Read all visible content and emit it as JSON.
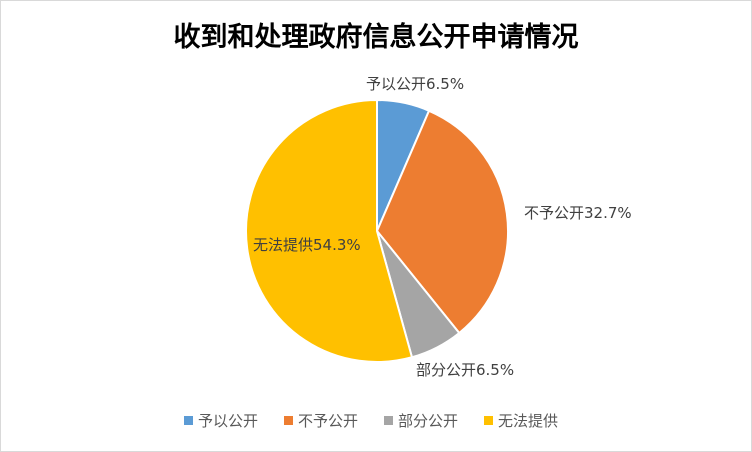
{
  "chart_data": {
    "type": "pie",
    "title": "收到和处理政府信息公开申请情况",
    "categories": [
      "予以公开",
      "不予公开",
      "部分公开",
      "无法提供"
    ],
    "values": [
      6.5,
      32.7,
      6.5,
      54.3
    ],
    "data_labels": [
      "予以公开6.5%",
      "不予公开32.7%",
      "部分公开6.5%",
      "无法提供54.3%"
    ],
    "colors": [
      "#5B9BD5",
      "#ED7D31",
      "#A5A5A5",
      "#FFC000"
    ],
    "legend_position": "bottom"
  }
}
